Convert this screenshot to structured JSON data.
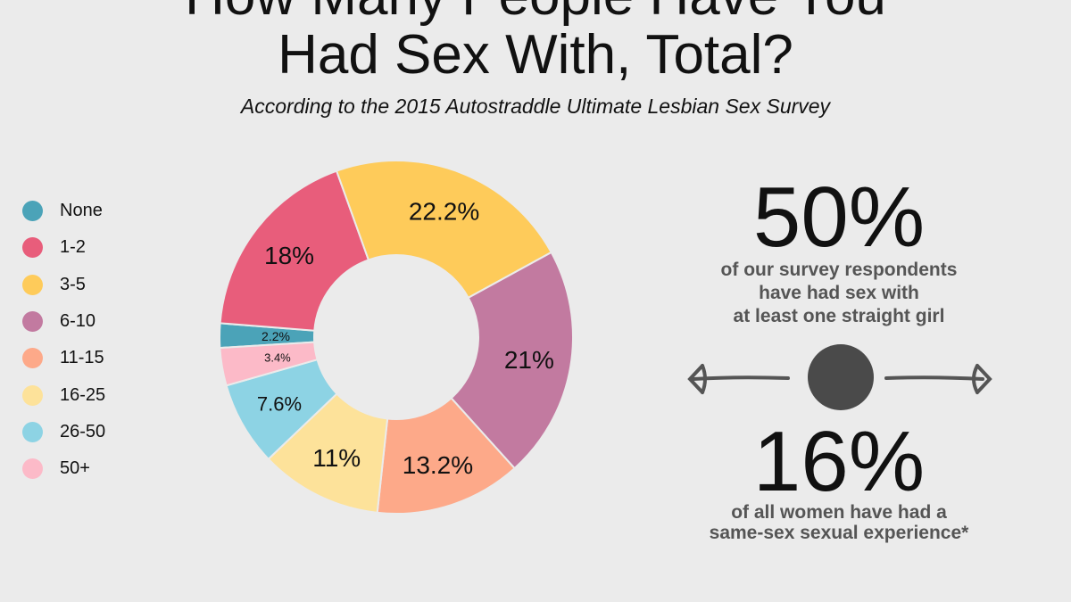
{
  "title": {
    "line1": "How Many People Have You",
    "line2": "Had Sex With, Total?"
  },
  "subtitle": "According to the 2015 Autostraddle Ultimate Lesbian Sex Survey",
  "chart_data": {
    "type": "pie",
    "title": "How Many People Have You Had Sex With, Total?",
    "categories": [
      "None",
      "1-2",
      "3-5",
      "6-10",
      "11-15",
      "16-25",
      "26-50",
      "50+"
    ],
    "values": [
      2.2,
      18,
      22.2,
      21,
      13.2,
      11,
      7.6,
      3.4
    ],
    "labels": [
      "2.2%",
      "18%",
      "22.2%",
      "21%",
      "13.2%",
      "11%",
      "7.6%",
      "3.4%"
    ],
    "colors": [
      "#4ba3b8",
      "#e85d7b",
      "#fecb5a",
      "#c27aa0",
      "#fda989",
      "#fde29a",
      "#8dd3e4",
      "#fcbac8"
    ],
    "donut": true,
    "legend": "left"
  },
  "stats": [
    {
      "value": "50%",
      "lines": [
        "of our survey respondents",
        "have had sex with",
        "at least one straight girl"
      ]
    },
    {
      "value": "16%",
      "lines": [
        "of all women have had a",
        "same-sex sexual experience*"
      ]
    }
  ]
}
